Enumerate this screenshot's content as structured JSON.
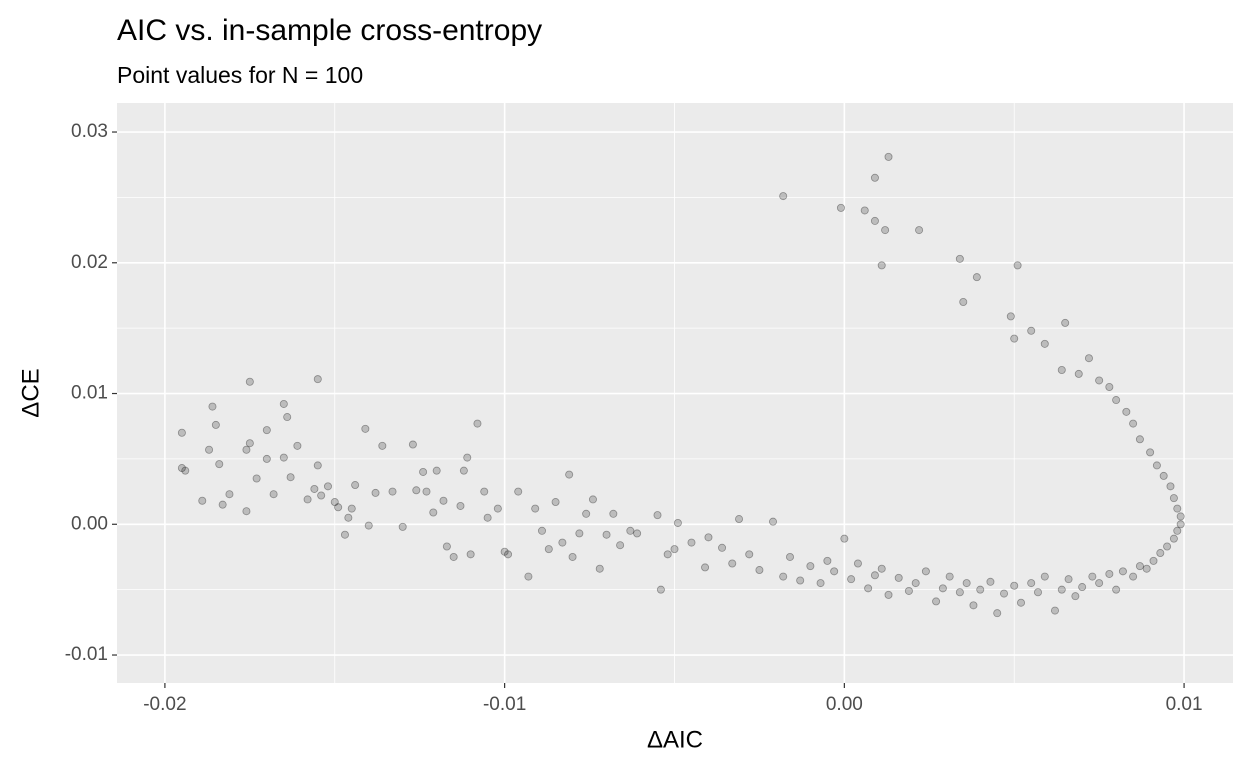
{
  "chart_data": {
    "type": "scatter",
    "title": "AIC vs. in-sample cross-entropy",
    "subtitle": "Point values for N = 100",
    "x_label": "ΔAIC",
    "y_label": "ΔCE",
    "color": "#000000",
    "grid": true,
    "xlim": [
      -0.02141,
      0.01144
    ],
    "ylim": [
      -0.01214,
      0.03222
    ],
    "xticks": [
      -0.02,
      -0.01,
      {
        "value": 0,
        "label": "0.00"
      },
      0.01
    ],
    "yticks": [
      -0.01,
      {
        "value": 0,
        "label": "0.00"
      },
      0.01,
      0.02,
      0.03
    ],
    "x": [
      -0.0195,
      -0.0195,
      -0.0194,
      -0.0189,
      -0.0187,
      -0.0186,
      -0.0185,
      -0.0184,
      -0.0183,
      -0.0181,
      -0.0176,
      -0.0175,
      -0.0175,
      -0.0176,
      -0.0173,
      -0.017,
      -0.017,
      -0.0168,
      -0.0165,
      -0.0165,
      -0.0164,
      -0.0163,
      -0.0161,
      -0.0158,
      -0.0156,
      -0.0155,
      -0.0155,
      -0.0154,
      -0.0152,
      -0.015,
      -0.0149,
      -0.0147,
      -0.0146,
      -0.0145,
      -0.0144,
      -0.0141,
      -0.014,
      -0.0138,
      -0.0136,
      -0.0133,
      -0.013,
      -0.0127,
      -0.0126,
      -0.0124,
      -0.0123,
      -0.0121,
      -0.012,
      -0.0118,
      -0.0117,
      -0.0115,
      -0.0113,
      -0.0112,
      -0.0111,
      -0.011,
      -0.0108,
      -0.0106,
      -0.0105,
      -0.0102,
      -0.01,
      -0.0099,
      -0.0096,
      -0.0093,
      -0.0091,
      -0.0089,
      -0.0087,
      -0.0085,
      -0.0083,
      -0.0081,
      -0.008,
      -0.0078,
      -0.0076,
      -0.0074,
      -0.0072,
      -0.007,
      -0.0068,
      -0.0066,
      -0.0063,
      -0.0061,
      -0.0055,
      -0.0054,
      -0.0052,
      -0.005,
      -0.0049,
      -0.0045,
      -0.0041,
      -0.004,
      -0.0036,
      -0.0033,
      -0.0031,
      -0.0028,
      -0.0025,
      -0.0021,
      -0.0018,
      -0.0016,
      -0.0013,
      -0.001,
      -0.0007,
      -0.0005,
      -0.0003,
      0.0,
      0.0002,
      0.0004,
      0.0007,
      0.0009,
      0.0011,
      0.0013,
      0.0016,
      0.0019,
      0.0021,
      0.0024,
      0.0027,
      0.0029,
      0.0031,
      0.0034,
      0.0036,
      0.0038,
      0.004,
      0.0043,
      0.0045,
      0.0047,
      0.005,
      0.0052,
      0.0055,
      0.0057,
      0.0059,
      0.0062,
      0.0064,
      0.0066,
      0.0068,
      0.007,
      0.0073,
      0.0075,
      0.0078,
      0.008,
      0.0082,
      0.0085,
      0.0087,
      0.0089,
      0.0091,
      0.0093,
      0.0095,
      0.0097,
      0.0098,
      0.0099,
      0.0099,
      0.0098,
      0.0097,
      0.0096,
      0.0094,
      0.0092,
      0.009,
      0.0087,
      0.0085,
      0.0083,
      0.008,
      0.0078,
      0.0075,
      0.0072,
      0.0069,
      0.0065,
      0.0064,
      0.0059,
      0.0055,
      0.005,
      0.0049,
      0.0051,
      0.0039,
      0.0034,
      0.0035,
      0.0022,
      0.0011,
      0.0012,
      0.0009,
      0.0013,
      0.0009,
      0.0006,
      -0.0001,
      -0.0018
    ],
    "values": [
      0.0043,
      0.007,
      0.0041,
      0.0018,
      0.0057,
      0.009,
      0.0076,
      0.0046,
      0.0015,
      0.0023,
      0.0057,
      0.0109,
      0.0062,
      0.001,
      0.0035,
      0.0072,
      0.005,
      0.0023,
      0.0092,
      0.0051,
      0.0082,
      0.0036,
      0.006,
      0.0019,
      0.0027,
      0.0111,
      0.0045,
      0.0022,
      0.0029,
      0.0017,
      0.0013,
      -0.0008,
      0.0005,
      0.0012,
      0.003,
      0.0073,
      -0.0001,
      0.0024,
      0.006,
      0.0025,
      -0.0002,
      0.0061,
      0.0026,
      0.004,
      0.0025,
      0.0009,
      0.0041,
      0.0018,
      -0.0017,
      -0.0025,
      0.0014,
      0.0041,
      0.0051,
      -0.0023,
      0.0077,
      0.0025,
      0.0005,
      0.0012,
      -0.0021,
      -0.0023,
      0.0025,
      -0.004,
      0.0012,
      -0.0005,
      -0.0019,
      0.0017,
      -0.0014,
      0.0038,
      -0.0025,
      -0.0007,
      0.0008,
      0.0019,
      -0.0034,
      -0.0008,
      0.0008,
      -0.0016,
      -0.0005,
      -0.0007,
      0.0007,
      -0.005,
      -0.0023,
      -0.0019,
      0.0001,
      -0.0014,
      -0.0033,
      -0.001,
      -0.0018,
      -0.003,
      0.0004,
      -0.0023,
      -0.0035,
      0.0002,
      -0.004,
      -0.0025,
      -0.0043,
      -0.0032,
      -0.0045,
      -0.0028,
      -0.0036,
      -0.0011,
      -0.0042,
      -0.003,
      -0.0049,
      -0.0039,
      -0.0034,
      -0.0054,
      -0.0041,
      -0.0051,
      -0.0045,
      -0.0036,
      -0.0059,
      -0.0049,
      -0.004,
      -0.0052,
      -0.0045,
      -0.0062,
      -0.005,
      -0.0044,
      -0.0068,
      -0.0053,
      -0.0047,
      -0.006,
      -0.0045,
      -0.0052,
      -0.004,
      -0.0066,
      -0.005,
      -0.0042,
      -0.0055,
      -0.0048,
      -0.004,
      -0.0045,
      -0.0038,
      -0.005,
      -0.0036,
      -0.004,
      -0.0032,
      -0.0034,
      -0.0028,
      -0.0022,
      -0.0017,
      -0.0011,
      -0.0005,
      0.0,
      0.0006,
      0.0012,
      0.002,
      0.0029,
      0.0037,
      0.0045,
      0.0055,
      0.0065,
      0.0077,
      0.0086,
      0.0095,
      0.0105,
      0.011,
      0.0127,
      0.0115,
      0.0154,
      0.0118,
      0.0138,
      0.0148,
      0.0142,
      0.0159,
      0.0198,
      0.0189,
      0.0203,
      0.017,
      0.0225,
      0.0198,
      0.0225,
      0.0265,
      0.0281,
      0.0232,
      0.024,
      0.0242,
      0.0251
    ]
  }
}
